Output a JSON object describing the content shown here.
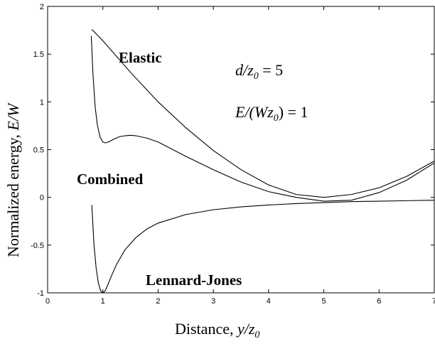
{
  "chart_data": {
    "type": "line",
    "title": "",
    "xlabel": {
      "prefix": "Distance, ",
      "var": "y/z",
      "sub": "0"
    },
    "ylabel": {
      "prefix": "Normalized energy, ",
      "var": "E/W"
    },
    "xlim": [
      0,
      7
    ],
    "ylim": [
      -1,
      2
    ],
    "xticks": [
      0,
      1,
      2,
      3,
      4,
      5,
      6,
      7
    ],
    "yticks": [
      -1,
      -0.5,
      0,
      0.5,
      1,
      1.5,
      2
    ],
    "ytick_labels": [
      "-1",
      "-0.5",
      "0",
      "0.5",
      "1",
      "1.5",
      "2"
    ],
    "grid": false,
    "annotations": {
      "d_ratio": {
        "var": "d/z",
        "sub": "0",
        "rest": " = 5"
      },
      "e_ratio": {
        "pre": "E/(Wz",
        "sub": "0",
        "rest": ") = 1"
      }
    },
    "series": [
      {
        "name": "Elastic",
        "x": [
          0.8,
          1.0,
          1.5,
          2.0,
          2.5,
          3.0,
          3.5,
          4.0,
          4.5,
          5.0,
          5.5,
          6.0,
          6.5,
          7.0
        ],
        "y": [
          1.76,
          1.64,
          1.31,
          1.0,
          0.73,
          0.49,
          0.29,
          0.13,
          0.03,
          0.0,
          0.03,
          0.1,
          0.22,
          0.38
        ]
      },
      {
        "name": "Combined",
        "x": [
          0.79,
          0.82,
          0.86,
          0.9,
          0.95,
          1.0,
          1.05,
          1.1,
          1.2,
          1.3,
          1.4,
          1.5,
          1.6,
          1.8,
          2.0,
          2.5,
          3.0,
          3.5,
          4.0,
          4.5,
          5.0,
          5.5,
          6.0,
          6.5,
          7.0
        ],
        "y": [
          1.69,
          1.3,
          0.95,
          0.76,
          0.63,
          0.58,
          0.57,
          0.58,
          0.61,
          0.635,
          0.645,
          0.65,
          0.645,
          0.62,
          0.58,
          0.43,
          0.29,
          0.16,
          0.06,
          0.0,
          -0.04,
          -0.03,
          0.05,
          0.18,
          0.36
        ]
      },
      {
        "name": "Lennard-Jones",
        "x": [
          0.8,
          0.84,
          0.88,
          0.92,
          0.96,
          1.0,
          1.04,
          1.08,
          1.15,
          1.25,
          1.4,
          1.6,
          1.8,
          2.0,
          2.5,
          3.0,
          3.5,
          4.0,
          4.5,
          5.0,
          5.5,
          6.0,
          6.5,
          7.0
        ],
        "y": [
          -0.08,
          -0.5,
          -0.75,
          -0.9,
          -0.98,
          -1.0,
          -0.98,
          -0.93,
          -0.83,
          -0.7,
          -0.55,
          -0.42,
          -0.33,
          -0.27,
          -0.18,
          -0.13,
          -0.1,
          -0.08,
          -0.065,
          -0.055,
          -0.045,
          -0.04,
          -0.035,
          -0.03
        ]
      }
    ]
  }
}
